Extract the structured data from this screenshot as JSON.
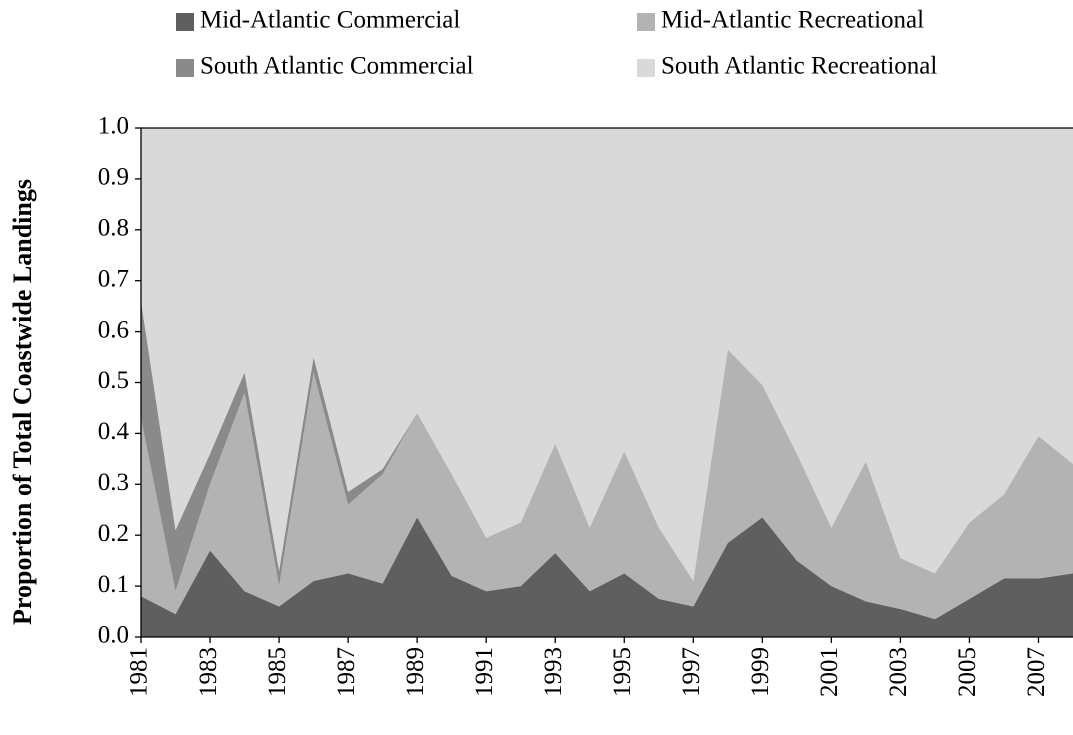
{
  "chart_data": {
    "type": "stacked-area",
    "y_label": "Proportion of Total Coastwide Landings",
    "x": [
      1981,
      1982,
      1983,
      1984,
      1985,
      1986,
      1987,
      1988,
      1989,
      1990,
      1991,
      1992,
      1993,
      1994,
      1995,
      1996,
      1997,
      1998,
      1999,
      2000,
      2001,
      2002,
      2003,
      2004,
      2005,
      2006,
      2007,
      2008
    ],
    "xlim": [
      1981,
      2008
    ],
    "xticks": [
      1981,
      1983,
      1985,
      1987,
      1989,
      1991,
      1993,
      1995,
      1997,
      1999,
      2001,
      2003,
      2005,
      2007
    ],
    "ylim": [
      0,
      1
    ],
    "yticks": [
      {
        "value": 0,
        "label": "0.0"
      },
      0.1,
      0.2,
      0.3,
      0.4,
      0.5,
      0.6,
      0.7,
      0.8,
      0.9,
      {
        "value": 1,
        "label": "1.0"
      }
    ],
    "series": [
      {
        "name": "Mid-Atlantic Commercial",
        "color": "#5f5f5f",
        "values": [
          0.08,
          0.045,
          0.17,
          0.09,
          0.06,
          0.11,
          0.125,
          0.105,
          0.235,
          0.12,
          0.09,
          0.1,
          0.165,
          0.09,
          0.125,
          0.075,
          0.06,
          0.185,
          0.235,
          0.15,
          0.1,
          0.07,
          0.055,
          0.035,
          0.075,
          0.115,
          0.115,
          0.125
        ]
      },
      {
        "name": "Mid-Atlantic Recreational",
        "color": "#b3b3b3",
        "values": [
          0.35,
          0.045,
          0.13,
          0.39,
          0.04,
          0.41,
          0.135,
          0.215,
          0.205,
          0.2,
          0.105,
          0.125,
          0.215,
          0.125,
          0.24,
          0.14,
          0.05,
          0.38,
          0.26,
          0.21,
          0.115,
          0.275,
          0.1,
          0.09,
          0.15,
          0.165,
          0.28,
          0.215
        ]
      },
      {
        "name": "South Atlantic Commercial",
        "color": "#8a8a8a",
        "values": [
          0.23,
          0.12,
          0.06,
          0.04,
          0.03,
          0.03,
          0.025,
          0.01,
          0,
          0,
          0,
          0,
          0,
          0,
          0,
          0,
          0,
          0,
          0,
          0,
          0,
          0,
          0,
          0,
          0,
          0,
          0,
          0
        ]
      },
      {
        "name": "South Atlantic Recreational",
        "color": "#d9d9d9",
        "values": [
          0.34,
          0.79,
          0.64,
          0.48,
          0.87,
          0.45,
          0.715,
          0.67,
          0.56,
          0.68,
          0.805,
          0.775,
          0.62,
          0.785,
          0.635,
          0.785,
          0.89,
          0.435,
          0.505,
          0.64,
          0.785,
          0.655,
          0.845,
          0.875,
          0.775,
          0.72,
          0.605,
          0.66
        ]
      }
    ]
  }
}
